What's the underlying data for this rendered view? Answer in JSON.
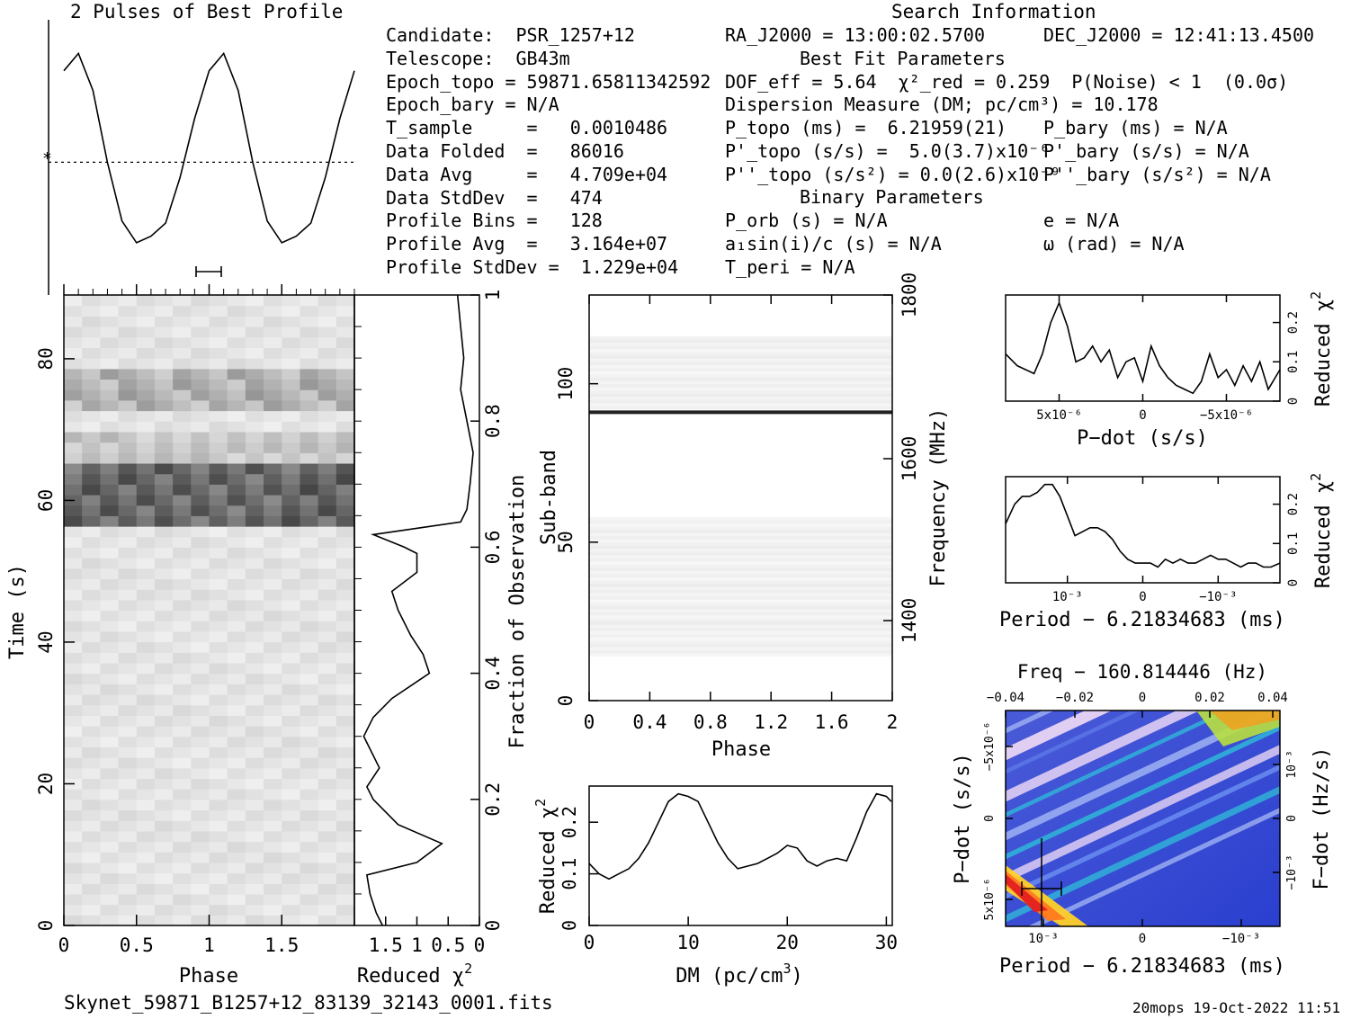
{
  "profile_title": "2 Pulses of Best Profile",
  "search_title": "Search Information",
  "best_fit_title": "Best Fit Parameters",
  "binary_title": "Binary Parameters",
  "info_left": [
    "Candidate:  PSR_1257+12",
    "Telescope:  GB43m",
    "Epoch_topo = 59871.65811342592",
    "Epoch_bary = N/A",
    "T_sample     =   0.0010486",
    "Data Folded  =   86016",
    "Data Avg     =   4.709e+04",
    "Data StdDev  =   474",
    "Profile Bins =   128",
    "Profile Avg  =   3.164e+07",
    "Profile StdDev =  1.229e+04"
  ],
  "info_mid": [
    "RA_J2000 = 13:00:02.5700",
    "DOF_eff = 5.64  χ²_red = 0.259  P(Noise) < 1  (0.0σ)",
    "Dispersion Measure (DM; pc/cm³) = 10.178",
    "P_topo (ms) =  6.21959(21)",
    "P'_topo (s/s) =  5.0(3.7)x10⁻⁶",
    "P''_topo (s/s²) = 0.0(2.6)x10⁻⁹",
    "P_orb (s) = N/A",
    "a₁sin(i)/c (s) = N/A",
    "T_peri = N/A"
  ],
  "info_right": [
    "DEC_J2000 = 12:41:13.4500",
    "P_bary (ms) = N/A",
    "P'_bary (s/s) = N/A",
    "P''_bary (s/s²) = N/A",
    "e = N/A",
    "ω (rad) = N/A"
  ],
  "footer_file": "Skynet_59871_B1257+12_83139_32143_0001.fits",
  "footer_stamp": "20mops 19-Oct-2022 11:51",
  "colors": {
    "axes": "#000000",
    "background": "#ffffff",
    "band_dark": "#1a1a1a"
  },
  "chart_data": [
    {
      "type": "line",
      "name": "profile",
      "title": "2 Pulses of Best Profile",
      "x": [
        0.0,
        0.1,
        0.2,
        0.3,
        0.4,
        0.5,
        0.6,
        0.7,
        0.8,
        0.9,
        1.0,
        1.1,
        1.2,
        1.3,
        1.4,
        1.5,
        1.6,
        1.7,
        1.8,
        1.9,
        2.0
      ],
      "y": [
        0.84,
        0.92,
        0.75,
        0.42,
        0.15,
        0.05,
        0.08,
        0.14,
        0.35,
        0.62,
        0.84,
        0.92,
        0.75,
        0.42,
        0.15,
        0.05,
        0.08,
        0.14,
        0.35,
        0.62,
        0.84
      ],
      "dashed_mean": 0.42,
      "errorbar_phase": [
        0.91,
        1.09
      ]
    },
    {
      "type": "heatmap",
      "name": "time-vs-phase",
      "xlabel": "Phase",
      "ylabel": "Time (s)",
      "xlim": [
        0,
        2
      ],
      "ylim": [
        0,
        89
      ],
      "xticks": [
        "0",
        "0.5",
        "1",
        "1.5"
      ],
      "yticks": [
        "0",
        "20",
        "40",
        "60",
        "80"
      ],
      "dark_band_s": [
        56.5,
        66
      ],
      "moderate_bands_s": [
        [
          72,
          78
        ],
        [
          66,
          70
        ]
      ]
    },
    {
      "type": "line",
      "name": "reduced-chi2-vs-fraction",
      "xlabel": "Reduced χ²",
      "ylabel": "Fraction of Observation",
      "xticks": [
        "1.5",
        "1",
        "0.5",
        "0"
      ],
      "yticks": [
        "0",
        "0.2",
        "0.4",
        "0.6",
        "0.8",
        "1"
      ],
      "xlim": [
        2.0,
        0
      ],
      "fraction": [
        0.0,
        0.02,
        0.05,
        0.08,
        0.1,
        0.13,
        0.16,
        0.2,
        0.22,
        0.25,
        0.3,
        0.33,
        0.36,
        0.4,
        0.43,
        0.46,
        0.5,
        0.53,
        0.56,
        0.59,
        0.6,
        0.62,
        0.64,
        0.66,
        0.7,
        0.75,
        0.8,
        0.85,
        0.9,
        0.95,
        1.0
      ],
      "chi2": [
        1.55,
        1.65,
        1.75,
        1.8,
        1.0,
        0.6,
        1.3,
        1.7,
        1.8,
        1.6,
        1.85,
        1.7,
        1.4,
        0.8,
        0.9,
        1.1,
        1.3,
        1.4,
        1.0,
        1.0,
        1.2,
        1.7,
        0.3,
        0.2,
        0.15,
        0.1,
        0.2,
        0.3,
        0.25,
        0.3,
        0.35
      ]
    },
    {
      "type": "heatmap",
      "name": "subband-vs-phase",
      "xlabel": "Phase",
      "ylabel": "Sub-band",
      "y2label": "Frequency (MHz)",
      "xticks": [
        "0",
        "0.4",
        "0.8",
        "1.2",
        "1.6",
        "2"
      ],
      "yticks": [
        "0",
        "50",
        "100"
      ],
      "y2ticks": [
        "1400",
        "1600",
        "1800"
      ],
      "xlim": [
        0,
        2
      ],
      "ylim": [
        0,
        128
      ],
      "dark_line_subband": 91,
      "active_bands": [
        [
          14,
          58
        ],
        [
          92,
          115
        ]
      ]
    },
    {
      "type": "line",
      "name": "chi2-vs-dm",
      "xlabel": "DM (pc/cm³)",
      "ylabel": "Reduced χ²",
      "xticks": [
        "0",
        "10",
        "20",
        "30"
      ],
      "yticks": [
        "0",
        "0.1",
        "0.2"
      ],
      "xlim": [
        0,
        30.6
      ],
      "ylim": [
        0,
        0.27
      ],
      "x": [
        0,
        1,
        2,
        3,
        4,
        5,
        6,
        7,
        8,
        9,
        10,
        11,
        12,
        13,
        14,
        15,
        16,
        17,
        18,
        19,
        20,
        21,
        22,
        23,
        24,
        25,
        26,
        27,
        28,
        29,
        30,
        30.5
      ],
      "y": [
        0.12,
        0.1,
        0.09,
        0.1,
        0.11,
        0.13,
        0.16,
        0.2,
        0.24,
        0.255,
        0.25,
        0.24,
        0.2,
        0.16,
        0.13,
        0.11,
        0.115,
        0.12,
        0.13,
        0.14,
        0.155,
        0.15,
        0.125,
        0.115,
        0.125,
        0.13,
        0.125,
        0.17,
        0.22,
        0.255,
        0.25,
        0.24
      ]
    },
    {
      "type": "line",
      "name": "chi2-vs-pdot",
      "xlabel": "P-dot (s/s)",
      "ylabel": "Reduced χ²",
      "xticks": [
        "5x10⁻⁶",
        "0",
        "−5x10⁻⁶"
      ],
      "yticks": [
        "0",
        "0.1",
        "0.2"
      ],
      "xlim": [
        8.2e-06,
        -8.2e-06
      ],
      "ylim": [
        0,
        0.27
      ],
      "x": [
        8.2e-06,
        7.5e-06,
        7e-06,
        6.5e-06,
        6e-06,
        5.5e-06,
        5e-06,
        4.5e-06,
        4e-06,
        3.5e-06,
        3e-06,
        2.5e-06,
        2e-06,
        1.5e-06,
        1e-06,
        5e-07,
        0,
        -5e-07,
        -1e-06,
        -1.5e-06,
        -2e-06,
        -2.5e-06,
        -3e-06,
        -3.5e-06,
        -4e-06,
        -4.5e-06,
        -5e-06,
        -5.5e-06,
        -6e-06,
        -6.5e-06,
        -7e-06,
        -7.5e-06,
        -8.2e-06
      ],
      "y": [
        0.12,
        0.09,
        0.08,
        0.07,
        0.12,
        0.2,
        0.25,
        0.19,
        0.1,
        0.11,
        0.14,
        0.1,
        0.13,
        0.06,
        0.1,
        0.11,
        0.05,
        0.14,
        0.09,
        0.06,
        0.04,
        0.03,
        0.02,
        0.05,
        0.12,
        0.06,
        0.08,
        0.04,
        0.09,
        0.05,
        0.1,
        0.03,
        0.08
      ]
    },
    {
      "type": "line",
      "name": "chi2-vs-period",
      "xlabel": "Period − 6.21834683 (ms)",
      "ylabel": "Reduced χ²",
      "xticks": [
        "10⁻³",
        "0",
        "−10⁻³"
      ],
      "yticks": [
        "0",
        "0.1",
        "0.2"
      ],
      "xlim": [
        0.00182,
        -0.00182
      ],
      "ylim": [
        0,
        0.27
      ],
      "x": [
        0.00182,
        0.0017,
        0.0016,
        0.0015,
        0.0014,
        0.0013,
        0.0012,
        0.0011,
        0.001,
        0.0009,
        0.0008,
        0.0007,
        0.0006,
        0.0005,
        0.0004,
        0.0003,
        0.0002,
        0.0001,
        0,
        -0.0001,
        -0.0002,
        -0.0003,
        -0.0004,
        -0.0005,
        -0.0006,
        -0.0007,
        -0.0008,
        -0.0009,
        -0.001,
        -0.0011,
        -0.0012,
        -0.0013,
        -0.0014,
        -0.0015,
        -0.0016,
        -0.0017,
        -0.00182
      ],
      "y": [
        0.15,
        0.2,
        0.22,
        0.22,
        0.23,
        0.25,
        0.25,
        0.22,
        0.17,
        0.12,
        0.13,
        0.14,
        0.14,
        0.13,
        0.11,
        0.08,
        0.06,
        0.05,
        0.05,
        0.05,
        0.04,
        0.06,
        0.05,
        0.06,
        0.05,
        0.05,
        0.06,
        0.07,
        0.06,
        0.06,
        0.05,
        0.04,
        0.05,
        0.05,
        0.04,
        0.04,
        0.05
      ]
    },
    {
      "type": "heatmap",
      "name": "pdot-vs-period",
      "title": "Freq − 160.814446 (Hz)",
      "xlabel": "Period − 6.21834683 (ms)",
      "ylabel": "P-dot (s/s)",
      "y2label": "F-dot (Hz/s)",
      "xticks": [
        "10⁻³",
        "0",
        "−10⁻³"
      ],
      "x2ticks": [
        "−0.04",
        "−0.02",
        "0",
        "0.02",
        "0.04"
      ],
      "yticks": [
        "5x10⁻⁶",
        "0",
        "−5x10⁻⁶"
      ],
      "y2ticks": [
        "10⁻³",
        "0",
        "−10⁻³"
      ],
      "best_period": 0.0012,
      "best_pdot": 5e-06,
      "best_pdot_err": 3.7e-06
    }
  ]
}
